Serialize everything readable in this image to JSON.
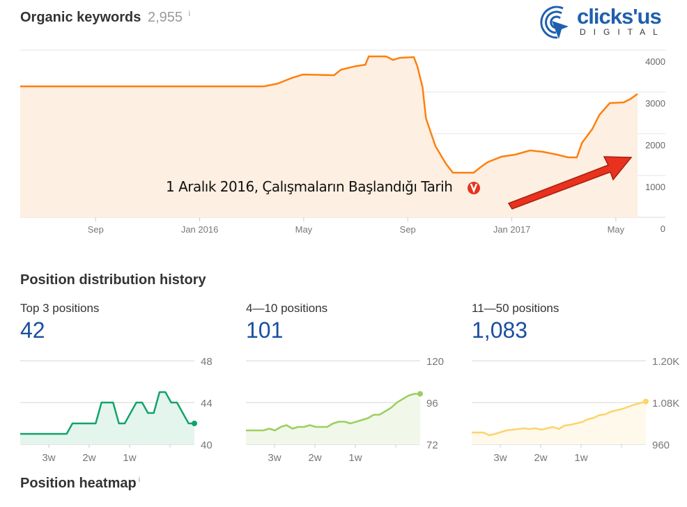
{
  "header": {
    "title": "Organic keywords",
    "count": "2,955",
    "info": "i"
  },
  "logo": {
    "text_main": "clicks'us",
    "text_sub": "DIGITAL"
  },
  "annotation": {
    "text": "1 Aralık 2016, Çalışmaların Başlandığı Tarih",
    "color": "#e8321e"
  },
  "chart_data": [
    {
      "type": "area",
      "name_in_ui": "",
      "color": "#ff7f0e",
      "fill": "#fdefe2",
      "ylim": [
        0,
        4000
      ],
      "yticks": [
        "4000",
        "3000",
        "2000",
        "1000",
        "0"
      ],
      "ytick_values": [
        4000,
        3000,
        2000,
        1000,
        0
      ],
      "xticks": [
        {
          "label": "Sep",
          "date": "2015-09-01"
        },
        {
          "label": "Jan 2016",
          "date": "2016-01-01"
        },
        {
          "label": "May",
          "date": "2016-05-01"
        },
        {
          "label": "Sep",
          "date": "2016-09-01"
        },
        {
          "label": "Jan 2017",
          "date": "2017-01-01"
        },
        {
          "label": "May",
          "date": "2017-05-01"
        }
      ],
      "xlim": [
        "2015-06-04",
        "2017-05-26"
      ],
      "grid": true,
      "points": [
        [
          "2015-06-04",
          3133
        ],
        [
          "2016-03-15",
          3133
        ],
        [
          "2016-04-01",
          3200
        ],
        [
          "2016-04-17",
          3333
        ],
        [
          "2016-04-30",
          3417
        ],
        [
          "2016-06-06",
          3400
        ],
        [
          "2016-06-14",
          3533
        ],
        [
          "2016-07-01",
          3617
        ],
        [
          "2016-07-12",
          3650
        ],
        [
          "2016-07-16",
          3850
        ],
        [
          "2016-08-06",
          3850
        ],
        [
          "2016-08-14",
          3767
        ],
        [
          "2016-08-22",
          3817
        ],
        [
          "2016-09-08",
          3833
        ],
        [
          "2016-09-12",
          3617
        ],
        [
          "2016-09-18",
          3117
        ],
        [
          "2016-09-22",
          2367
        ],
        [
          "2016-10-03",
          1700
        ],
        [
          "2016-10-15",
          1283
        ],
        [
          "2016-10-23",
          1067
        ],
        [
          "2016-11-17",
          1067
        ],
        [
          "2016-11-25",
          1200
        ],
        [
          "2016-12-03",
          1317
        ],
        [
          "2016-12-19",
          1450
        ],
        [
          "2017-01-05",
          1500
        ],
        [
          "2017-01-22",
          1600
        ],
        [
          "2017-02-07",
          1567
        ],
        [
          "2017-02-23",
          1500
        ],
        [
          "2017-03-06",
          1433
        ],
        [
          "2017-03-16",
          1433
        ],
        [
          "2017-03-22",
          1783
        ],
        [
          "2017-04-04",
          2117
        ],
        [
          "2017-04-12",
          2450
        ],
        [
          "2017-04-24",
          2733
        ],
        [
          "2017-05-10",
          2750
        ],
        [
          "2017-05-18",
          2833
        ],
        [
          "2017-05-26",
          2955
        ]
      ]
    },
    {
      "type": "area",
      "label": "Top 3 positions",
      "value": "42",
      "color": "#12a36b",
      "fill": "#e4f5ee",
      "ylim": [
        40,
        48
      ],
      "yticks": [
        "48",
        "44",
        "40"
      ],
      "xticks": [
        "3w",
        "2w",
        "1w"
      ],
      "values": [
        41,
        41,
        41,
        41,
        41,
        41,
        41,
        41,
        41,
        42,
        42,
        42,
        42,
        42,
        44,
        44,
        44,
        42,
        42,
        43,
        44,
        44,
        43,
        43,
        45,
        45,
        44,
        44,
        43,
        42,
        42
      ]
    },
    {
      "type": "area",
      "label": "4—10 positions",
      "value": "101",
      "color": "#9ccf5f",
      "fill": "#f1f8ea",
      "ylim": [
        72,
        120
      ],
      "yticks": [
        "120",
        "96",
        "72"
      ],
      "xticks": [
        "3w",
        "2w",
        "1w"
      ],
      "values": [
        80,
        80,
        80,
        80,
        81,
        80,
        82,
        83,
        81,
        82,
        82,
        83,
        82,
        82,
        82,
        84,
        85,
        85,
        84,
        85,
        86,
        87,
        89,
        89,
        91,
        93,
        96,
        98,
        100,
        101,
        101
      ]
    },
    {
      "type": "area",
      "label": "11—50 positions",
      "value": "1,083",
      "color": "#fcd46a",
      "fill": "#fff9ec",
      "ylim": [
        960,
        1200
      ],
      "yticks": [
        "1.20K",
        "1.08K",
        "960"
      ],
      "xticks": [
        "3w",
        "2w",
        "1w"
      ],
      "values": [
        994,
        994,
        994,
        986,
        990,
        995,
        1000,
        1002,
        1004,
        1006,
        1004,
        1006,
        1002,
        1006,
        1010,
        1004,
        1014,
        1016,
        1020,
        1024,
        1032,
        1036,
        1044,
        1046,
        1054,
        1058,
        1062,
        1068,
        1074,
        1078,
        1083
      ]
    }
  ],
  "sections": {
    "distribution": "Position distribution history",
    "heatmap": "Position heatmap",
    "heatmap_info": "i"
  }
}
